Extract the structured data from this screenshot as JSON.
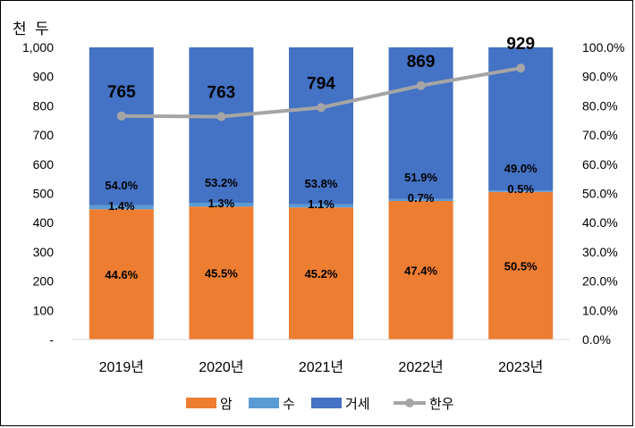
{
  "chart_data": {
    "type": "bar",
    "stacked": true,
    "unit_label": "천 두",
    "categories": [
      "2019년",
      "2020년",
      "2021년",
      "2022년",
      "2023년"
    ],
    "ylim_left": [
      0,
      1000
    ],
    "left_ticks": [
      "-",
      "100",
      "200",
      "300",
      "400",
      "500",
      "600",
      "700",
      "800",
      "900",
      "1,000"
    ],
    "ylim_right": [
      0,
      100
    ],
    "right_ticks": [
      "0.0%",
      "10.0%",
      "20.0%",
      "30.0%",
      "40.0%",
      "50.0%",
      "60.0%",
      "70.0%",
      "80.0%",
      "90.0%",
      "100.0%"
    ],
    "series": [
      {
        "name": "암",
        "axis": "right",
        "color": "#ED7D31",
        "values": [
          44.6,
          45.5,
          45.2,
          47.4,
          50.5
        ],
        "labels": [
          "44.6%",
          "45.5%",
          "45.2%",
          "47.4%",
          "50.5%"
        ]
      },
      {
        "name": "수",
        "axis": "right",
        "color": "#5B9BD5",
        "values": [
          1.4,
          1.3,
          1.1,
          0.7,
          0.5
        ],
        "labels": [
          "1.4%",
          "1.3%",
          "1.1%",
          "0.7%",
          "0.5%"
        ]
      },
      {
        "name": "거세",
        "axis": "right",
        "color": "#4472C4",
        "values": [
          54.0,
          53.2,
          53.8,
          51.9,
          49.0
        ],
        "labels": [
          "54.0%",
          "53.2%",
          "53.8%",
          "51.9%",
          "49.0%"
        ]
      },
      {
        "name": "한우",
        "type": "line",
        "axis": "left",
        "color": "#A5A5A5",
        "values": [
          765,
          763,
          794,
          869,
          929
        ],
        "labels": [
          "765",
          "763",
          "794",
          "869",
          "929"
        ]
      }
    ],
    "legend": [
      "암",
      "수",
      "거세",
      "한우"
    ],
    "legend_position": "bottom",
    "grid": false
  }
}
